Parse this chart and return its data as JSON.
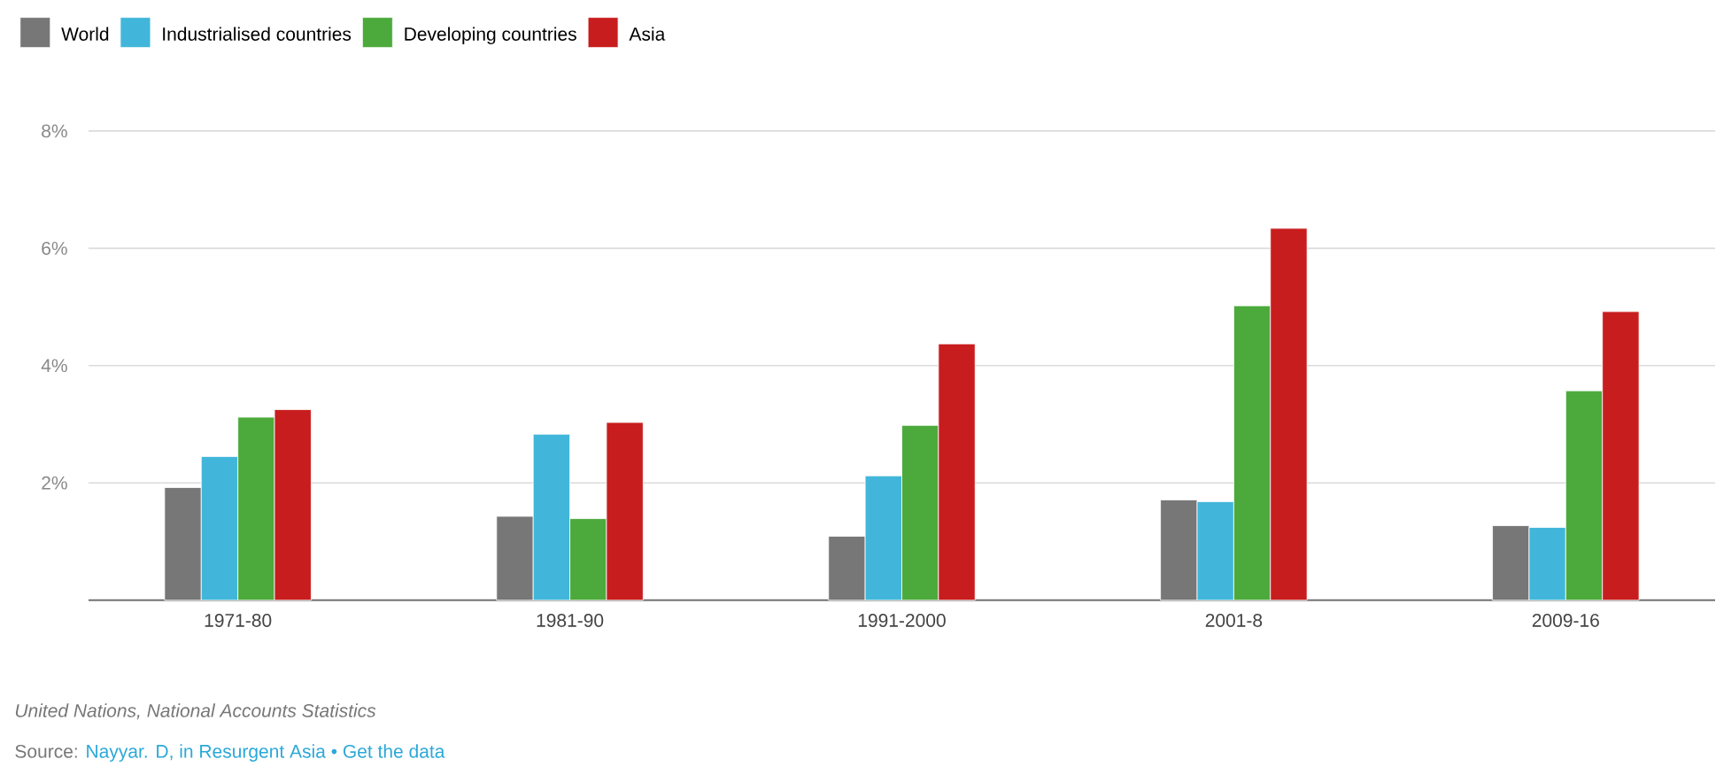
{
  "chart_data": {
    "type": "bar",
    "categories": [
      "1971-80",
      "1981-90",
      "1991-2000",
      "2001-8",
      "2009-16"
    ],
    "series": [
      {
        "name": "World",
        "color": "#777777",
        "values": [
          1.92,
          1.43,
          1.09,
          1.71,
          1.27
        ]
      },
      {
        "name": "Industrialised countries",
        "color": "#41b6da",
        "values": [
          2.45,
          2.83,
          2.12,
          1.68,
          1.24
        ]
      },
      {
        "name": "Developing countries",
        "color": "#4caa3c",
        "values": [
          3.12,
          1.39,
          2.98,
          5.02,
          3.57
        ]
      },
      {
        "name": "Asia",
        "color": "#c81d1e",
        "values": [
          3.25,
          3.03,
          4.37,
          6.34,
          4.92
        ]
      }
    ],
    "ylim": [
      0,
      8
    ],
    "yticks": [
      {
        "value": 0,
        "label": null
      },
      {
        "value": 2,
        "label": "2%"
      },
      {
        "value": 4,
        "label": "4%"
      },
      {
        "value": 6,
        "label": "6%"
      },
      {
        "value": 8,
        "label": "8%"
      }
    ],
    "grid": "y",
    "legend": "top left",
    "annotations": [
      "United Nations, National Accounts Statistics",
      "Source:",
      "Nayyar. D, in Resurgent Asia • Get the data"
    ]
  }
}
